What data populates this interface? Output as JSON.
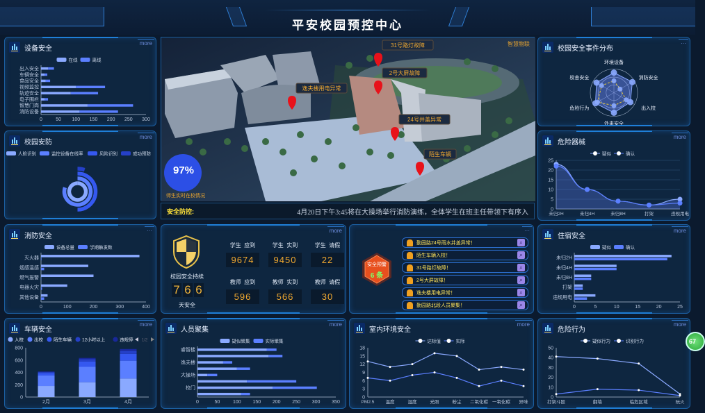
{
  "header": {
    "title": "平安校园预控中心"
  },
  "panels": {
    "equipment": {
      "title": "设备安全",
      "more": "more"
    },
    "campus_defense": {
      "title": "校园安防",
      "more": "more"
    },
    "fire": {
      "title": "消防安全",
      "more": "···"
    },
    "vehicle": {
      "title": "车辆安全",
      "more": "more"
    },
    "event_dist": {
      "title": "校园安全事件分布",
      "more": "···"
    },
    "weapons": {
      "title": "危险器械",
      "more": "more"
    },
    "dorm": {
      "title": "住宿安全",
      "more": "more"
    },
    "behavior": {
      "title": "危险行为",
      "more": "more"
    },
    "gathering": {
      "title": "人员聚集",
      "more": "more"
    },
    "indoor": {
      "title": "室内环境安全",
      "more": "more"
    },
    "stats": {
      "more": "more"
    },
    "alerts": {
      "more": "···"
    }
  },
  "map": {
    "corner_label": "智慧物联",
    "presence_percent": "97%",
    "presence_label": "师生实时在校情况",
    "markers": [
      "31号路灯故障",
      "2号大屏故障",
      "逸夫楼用电异常",
      "24号井盖异常",
      "陌生车辆"
    ],
    "colors": {
      "pin": "#e8121a",
      "label": "#f0a830"
    }
  },
  "ticker": {
    "label": "安全防控:",
    "message": "4月20日下午3:45将在大操场举行消防演练，全体学生在班主任带领下有序入"
  },
  "safety_days": {
    "label": "校园安全持续",
    "digits": [
      "7",
      "6",
      "6"
    ],
    "unit": "天安全"
  },
  "attendance": [
    {
      "label": "学生  应到",
      "value": "9674"
    },
    {
      "label": "学生  实到",
      "value": "9450"
    },
    {
      "label": "学生  请假",
      "value": "22"
    },
    {
      "label": "教师  应到",
      "value": "596"
    },
    {
      "label": "教师  实到",
      "value": "566"
    },
    {
      "label": "教师  请假",
      "value": "30"
    }
  ],
  "alerts": {
    "badge_label": "安全预警",
    "badge_count": "6 条",
    "items": [
      "勤园路24号雨水井盖异常！",
      "陌生车辆入校！",
      "31号路灯故障！",
      "2号大屏故障！",
      "逸夫楼用电异常！",
      "勤园路北段人员聚集！"
    ]
  },
  "floating_badge": "67",
  "chart_data": [
    {
      "id": "equipment",
      "type": "bar",
      "orientation": "horizontal",
      "stacked": true,
      "categories": [
        "出入安全",
        "车辆安全",
        "食品安全",
        "视频监控",
        "轨迹安全",
        "电子围栏",
        "智慧门岗",
        "消防设备"
      ],
      "series": [
        {
          "name": "在线",
          "values": [
            20,
            10,
            13,
            100,
            85,
            10,
            133,
            110
          ]
        },
        {
          "name": "离线",
          "values": [
            17,
            8,
            13,
            83,
            78,
            10,
            130,
            110
          ]
        }
      ],
      "xlim": [
        0,
        300
      ],
      "xticks": [
        "0",
        "50",
        "100",
        "150",
        "200",
        "250",
        "300"
      ]
    },
    {
      "id": "campus_defense",
      "type": "pie",
      "variant": "concentric-rings",
      "series": [
        {
          "name": "人脸识别",
          "value": 100
        },
        {
          "name": "监控设备在线率",
          "value": 80
        },
        {
          "name": "风险识别",
          "value": 50
        },
        {
          "name": "成功预防",
          "value": 5
        }
      ]
    },
    {
      "id": "fire",
      "type": "bar",
      "orientation": "horizontal",
      "stacked": false,
      "categories": [
        "灭火器",
        "烟感温感",
        "燃气报警",
        "电器火灾",
        "其他设备"
      ],
      "series": [
        {
          "name": "设备总量",
          "values": [
            375,
            180,
            200,
            100,
            25
          ]
        },
        {
          "name": "学期触发数",
          "values": [
            2,
            12,
            1,
            4,
            12
          ]
        }
      ],
      "xlim": [
        0,
        400
      ],
      "xticks": [
        "0",
        "100",
        "200",
        "300",
        "400"
      ]
    },
    {
      "id": "vehicle",
      "type": "bar",
      "orientation": "vertical",
      "stacked": true,
      "categories": [
        "2月",
        "3月",
        "4月"
      ],
      "series": [
        {
          "name": "入校",
          "values": [
            180,
            240,
            300
          ]
        },
        {
          "name": "出校",
          "values": [
            170,
            250,
            290
          ]
        },
        {
          "name": "陌生车辆",
          "values": [
            40,
            85,
            110
          ]
        },
        {
          "name": "12小时以上",
          "values": [
            15,
            40,
            50
          ]
        },
        {
          "name": "违规停",
          "values": [
            10,
            20,
            30
          ]
        }
      ],
      "ylim": [
        0,
        800
      ],
      "yticks": [
        "0",
        "200",
        "400",
        "600",
        "800"
      ],
      "legend_page": "1/2"
    },
    {
      "id": "event_dist",
      "type": "radar",
      "indicators": [
        "环境设备",
        "消防安全",
        "出入校",
        "外来安全",
        "危险行为",
        "校舍安全"
      ],
      "series": [
        {
          "values": [
            85,
            90,
            80,
            85,
            90,
            85
          ]
        },
        {
          "values": [
            50,
            30,
            60,
            55,
            80,
            60
          ]
        }
      ]
    },
    {
      "id": "weapons",
      "type": "area",
      "categories": [
        "未归2H",
        "未归4H",
        "未归8H",
        "打架",
        "违规用电"
      ],
      "series": [
        {
          "name": "疑似",
          "values": [
            23,
            10,
            4,
            2,
            5
          ]
        },
        {
          "name": "确认",
          "values": [
            22,
            10,
            4,
            2,
            3
          ]
        }
      ],
      "ylim": [
        0,
        25
      ],
      "yticks": [
        "0",
        "5",
        "10",
        "15",
        "20",
        "25"
      ]
    },
    {
      "id": "dorm",
      "type": "bar",
      "orientation": "horizontal",
      "stacked": false,
      "categories": [
        "未归2H",
        "未归4H",
        "未归8H",
        "打架",
        "违规用电"
      ],
      "series": [
        {
          "name": "疑似",
          "values": [
            23,
            10,
            4,
            2,
            5
          ]
        },
        {
          "name": "确认",
          "values": [
            22,
            10,
            4,
            2,
            3
          ]
        }
      ],
      "xlim": [
        0,
        25
      ],
      "xticks": [
        "0",
        "5",
        "10",
        "15",
        "20",
        "25"
      ]
    },
    {
      "id": "behavior",
      "type": "line",
      "categories": [
        "打架斗殴",
        "翻墙",
        "临危区域",
        "玩火"
      ],
      "series": [
        {
          "name": "疑似行为",
          "values": [
            41,
            39,
            34,
            3
          ]
        },
        {
          "name": "识别行为",
          "values": [
            3,
            8,
            7,
            1.5
          ]
        }
      ],
      "ylim": [
        0,
        50
      ],
      "yticks": [
        "0",
        "10",
        "20",
        "30",
        "40",
        "50"
      ]
    },
    {
      "id": "gathering",
      "type": "bar",
      "orientation": "horizontal",
      "stacked": true,
      "categories": [
        "睿智楼",
        "",
        "逸夫楼",
        "",
        "大操场",
        "",
        "校门",
        ""
      ],
      "series": [
        {
          "name": "疑似聚集",
          "values": [
            175,
            180,
            65,
            100,
            25,
            125,
            190,
            110
          ]
        },
        {
          "name": "实际聚集",
          "values": [
            25,
            35,
            23,
            33,
            25,
            125,
            112,
            23
          ]
        }
      ],
      "xlim": [
        0,
        350
      ],
      "xticks": [
        "0",
        "50",
        "100",
        "150",
        "200",
        "250",
        "300",
        "350"
      ]
    },
    {
      "id": "indoor",
      "type": "line",
      "categories": [
        "PM2.5",
        "温度",
        "湿度",
        "光照",
        "粉尘",
        "二氧化碳",
        "一氧化碳",
        "异味"
      ],
      "series": [
        {
          "name": "达标值",
          "values": [
            13,
            11,
            12,
            16,
            15,
            10,
            11,
            10
          ]
        },
        {
          "name": "实际",
          "values": [
            7,
            6,
            8,
            9,
            7,
            4,
            6,
            4
          ]
        }
      ],
      "ylim": [
        0,
        18
      ],
      "yticks": [
        "0",
        "3",
        "6",
        "9",
        "12",
        "15",
        "18"
      ]
    }
  ],
  "colors": {
    "series": [
      "#8aa9ff",
      "#5b7fff",
      "#3558f0",
      "#2540c8",
      "#18289a"
    ],
    "accent": "#1f7fd8",
    "number": "#f0a830"
  }
}
